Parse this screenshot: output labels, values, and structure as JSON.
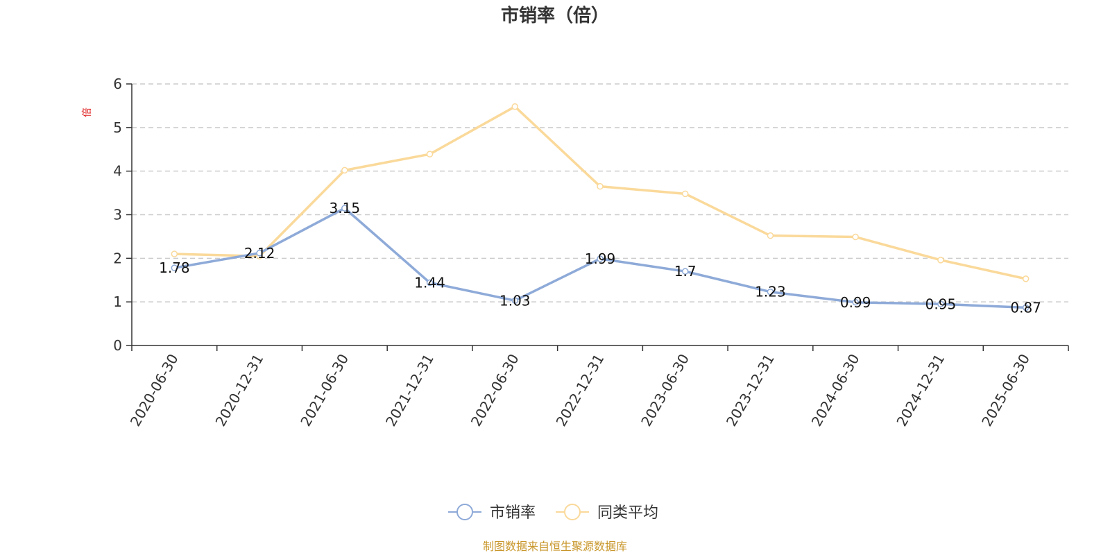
{
  "chart_data": {
    "type": "line",
    "title": "市销率（倍）",
    "ylabel": "倍",
    "xlabel": "",
    "categories": [
      "2020-06-30",
      "2020-12-31",
      "2021-06-30",
      "2021-12-31",
      "2022-06-30",
      "2022-12-31",
      "2023-06-30",
      "2023-12-31",
      "2024-06-30",
      "2024-12-31",
      "2025-06-30"
    ],
    "ylim": [
      0,
      6
    ],
    "yticks": [
      0,
      1,
      2,
      3,
      4,
      5,
      6
    ],
    "grid": true,
    "legend_position": "bottom",
    "series": [
      {
        "name": "市销率",
        "color": "#8eaad8",
        "values": [
          1.78,
          2.12,
          3.15,
          1.44,
          1.03,
          1.99,
          1.7,
          1.23,
          0.99,
          0.95,
          0.87
        ],
        "labels": [
          "1.78",
          "2.12",
          "3.15",
          "1.44",
          "1.03",
          "1.99",
          "1.7",
          "1.23",
          "0.99",
          "0.95",
          "0.87"
        ]
      },
      {
        "name": "同类平均",
        "color": "#fad99a",
        "values": [
          2.1,
          2.05,
          4.02,
          4.39,
          5.48,
          3.65,
          3.48,
          2.52,
          2.49,
          1.96,
          1.53
        ]
      }
    ]
  },
  "footer": {
    "source": "制图数据来自恒生聚源数据库",
    "source_color": "#c8962a"
  },
  "colors": {
    "ylabel": "#e02020",
    "axis": "#333333",
    "grid": "#cccccc"
  }
}
